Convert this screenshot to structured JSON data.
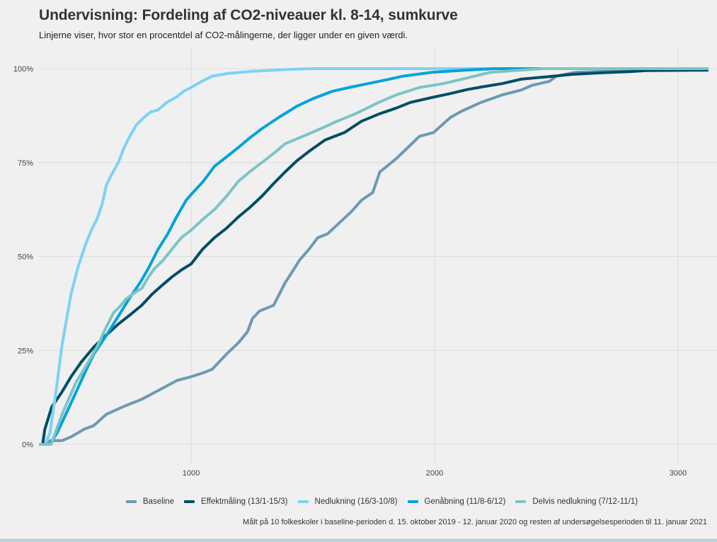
{
  "header": {
    "title": "Undervisning: Fordeling af CO2-niveauer kl. 8-14, sumkurve",
    "subtitle": "Linjerne viser, hvor stor en procentdel af CO2-målingerne, der ligger under en given værdi."
  },
  "caption": "Målt på 10 folkeskoler i baseline-perioden d. 15. oktober 2019 - 12. januar 2020 og resten af undersøgelsesperioden til 11. januar 2021",
  "chart_data": {
    "type": "line",
    "title": "Undervisning: Fordeling af CO2-niveauer kl. 8-14, sumkurve",
    "subtitle": "Linjerne viser, hvor stor en procentdel af CO2-målingerne, der ligger under en given værdi.",
    "xlabel": "",
    "ylabel": "",
    "xlim": [
      375,
      3125
    ],
    "ylim": [
      0,
      100
    ],
    "xticks": [
      1000,
      2000,
      3000
    ],
    "xtick_labels": [
      "1000",
      "2000",
      "3000"
    ],
    "yticks": [
      0,
      25,
      50,
      75,
      100
    ],
    "ytick_labels": [
      "0%",
      "25%",
      "50%",
      "75%",
      "100%"
    ],
    "grid": true,
    "legend_position": "bottom",
    "series": [
      {
        "name": "Baseline",
        "color": "#6b9bb0",
        "points": [
          [
            375,
            0
          ],
          [
            410,
            0
          ],
          [
            420,
            1
          ],
          [
            470,
            1
          ],
          [
            507,
            2
          ],
          [
            560,
            4
          ],
          [
            600,
            5
          ],
          [
            652,
            8
          ],
          [
            720,
            10
          ],
          [
            797,
            12
          ],
          [
            870,
            14.5
          ],
          [
            942,
            17
          ],
          [
            1000,
            18
          ],
          [
            1048,
            19
          ],
          [
            1087,
            20
          ],
          [
            1145,
            24
          ],
          [
            1194,
            27
          ],
          [
            1232,
            30
          ],
          [
            1252,
            33.5
          ],
          [
            1281,
            35.5
          ],
          [
            1339,
            37
          ],
          [
            1386,
            43
          ],
          [
            1406,
            45
          ],
          [
            1445,
            49
          ],
          [
            1485,
            52
          ],
          [
            1520,
            55
          ],
          [
            1560,
            56
          ],
          [
            1610,
            59
          ],
          [
            1659,
            62
          ],
          [
            1700,
            65
          ],
          [
            1746,
            67
          ],
          [
            1775,
            72.5
          ],
          [
            1842,
            76
          ],
          [
            1890,
            79
          ],
          [
            1938,
            82
          ],
          [
            1996,
            83
          ],
          [
            2065,
            87
          ],
          [
            2112,
            88.7
          ],
          [
            2190,
            91
          ],
          [
            2277,
            93
          ],
          [
            2355,
            94.3
          ],
          [
            2402,
            95.6
          ],
          [
            2471,
            96.6
          ],
          [
            2500,
            98
          ],
          [
            2577,
            99
          ],
          [
            2700,
            99.3
          ],
          [
            2860,
            100
          ],
          [
            3125,
            100
          ]
        ]
      },
      {
        "name": "Effektmåling (13/1-15/3)",
        "color": "#004d66",
        "points": [
          [
            375,
            0
          ],
          [
            390,
            0
          ],
          [
            399,
            4
          ],
          [
            428,
            10
          ],
          [
            470,
            14
          ],
          [
            507,
            18
          ],
          [
            550,
            22
          ],
          [
            602,
            26
          ],
          [
            650,
            29
          ],
          [
            701,
            32
          ],
          [
            750,
            34.5
          ],
          [
            797,
            37
          ],
          [
            840,
            40
          ],
          [
            875,
            42
          ],
          [
            920,
            44.5
          ],
          [
            962,
            46.5
          ],
          [
            1000,
            48
          ],
          [
            1048,
            52
          ],
          [
            1096,
            55
          ],
          [
            1145,
            57.5
          ],
          [
            1194,
            60.5
          ],
          [
            1240,
            63
          ],
          [
            1290,
            66
          ],
          [
            1340,
            69.5
          ],
          [
            1386,
            72.5
          ],
          [
            1435,
            75.5
          ],
          [
            1485,
            78
          ],
          [
            1550,
            81
          ],
          [
            1630,
            83
          ],
          [
            1700,
            86
          ],
          [
            1775,
            88
          ],
          [
            1842,
            89.5
          ],
          [
            1900,
            91
          ],
          [
            1987,
            92.3
          ],
          [
            2060,
            93.3
          ],
          [
            2132,
            94.4
          ],
          [
            2200,
            95.2
          ],
          [
            2277,
            96
          ],
          [
            2355,
            97.2
          ],
          [
            2471,
            97.9
          ],
          [
            2567,
            98.5
          ],
          [
            2692,
            98.9
          ],
          [
            2800,
            99.2
          ],
          [
            2870,
            99.5
          ],
          [
            3125,
            99.6
          ]
        ]
      },
      {
        "name": "Nedlukning (16/3-10/8)",
        "color": "#7ed1f5",
        "points": [
          [
            375,
            0
          ],
          [
            400,
            0
          ],
          [
            420,
            3
          ],
          [
            445,
            14
          ],
          [
            469,
            26
          ],
          [
            490,
            34
          ],
          [
            507,
            40
          ],
          [
            535,
            47
          ],
          [
            565,
            53
          ],
          [
            590,
            57
          ],
          [
            614,
            60
          ],
          [
            635,
            64
          ],
          [
            652,
            69
          ],
          [
            675,
            72
          ],
          [
            701,
            75
          ],
          [
            725,
            79
          ],
          [
            748,
            82
          ],
          [
            775,
            85
          ],
          [
            806,
            87
          ],
          [
            835,
            88.5
          ],
          [
            864,
            89
          ],
          [
            900,
            91
          ],
          [
            942,
            92.5
          ],
          [
            970,
            94
          ],
          [
            1000,
            95
          ],
          [
            1040,
            96.5
          ],
          [
            1087,
            98
          ],
          [
            1150,
            98.7
          ],
          [
            1250,
            99.3
          ],
          [
            1400,
            99.8
          ],
          [
            1500,
            100
          ],
          [
            3125,
            100
          ]
        ]
      },
      {
        "name": "Genåbning (11/8-6/12)",
        "color": "#00a3d9",
        "points": [
          [
            375,
            0
          ],
          [
            420,
            0
          ],
          [
            449,
            3
          ],
          [
            500,
            10
          ],
          [
            556,
            18
          ],
          [
            600,
            24
          ],
          [
            652,
            29
          ],
          [
            700,
            34
          ],
          [
            748,
            39
          ],
          [
            790,
            43
          ],
          [
            826,
            47
          ],
          [
            865,
            52
          ],
          [
            904,
            56
          ],
          [
            940,
            60.5
          ],
          [
            980,
            65
          ],
          [
            1000,
            66.5
          ],
          [
            1050,
            70
          ],
          [
            1096,
            74
          ],
          [
            1145,
            76.5
          ],
          [
            1194,
            79
          ],
          [
            1240,
            81.5
          ],
          [
            1290,
            84
          ],
          [
            1360,
            87
          ],
          [
            1435,
            90
          ],
          [
            1500,
            92
          ],
          [
            1581,
            94
          ],
          [
            1650,
            95
          ],
          [
            1726,
            96
          ],
          [
            1800,
            97
          ],
          [
            1871,
            98
          ],
          [
            1987,
            99
          ],
          [
            2100,
            99.5
          ],
          [
            2181,
            99.8
          ],
          [
            2250,
            100
          ],
          [
            3125,
            100
          ]
        ]
      },
      {
        "name": "Delvis nedlukning (7/12-11/1)",
        "color": "#7cc4c4",
        "points": [
          [
            375,
            0
          ],
          [
            425,
            0
          ],
          [
            470,
            8
          ],
          [
            527,
            16.5
          ],
          [
            570,
            21
          ],
          [
            614,
            26
          ],
          [
            650,
            31
          ],
          [
            681,
            35
          ],
          [
            705,
            36.5
          ],
          [
            730,
            38.5
          ],
          [
            760,
            40
          ],
          [
            797,
            41.5
          ],
          [
            820,
            44
          ],
          [
            846,
            46.5
          ],
          [
            885,
            49
          ],
          [
            922,
            52
          ],
          [
            960,
            55
          ],
          [
            1000,
            57
          ],
          [
            1050,
            60
          ],
          [
            1096,
            62.5
          ],
          [
            1145,
            66
          ],
          [
            1194,
            70
          ],
          [
            1240,
            72.5
          ],
          [
            1290,
            75
          ],
          [
            1340,
            77.5
          ],
          [
            1386,
            80
          ],
          [
            1460,
            82
          ],
          [
            1531,
            84
          ],
          [
            1600,
            86
          ],
          [
            1676,
            88
          ],
          [
            1770,
            91
          ],
          [
            1842,
            93
          ],
          [
            1938,
            95
          ],
          [
            2036,
            96
          ],
          [
            2132,
            97.5
          ],
          [
            2228,
            99
          ],
          [
            2373,
            99.7
          ],
          [
            2450,
            100
          ],
          [
            3125,
            100
          ]
        ]
      }
    ]
  }
}
